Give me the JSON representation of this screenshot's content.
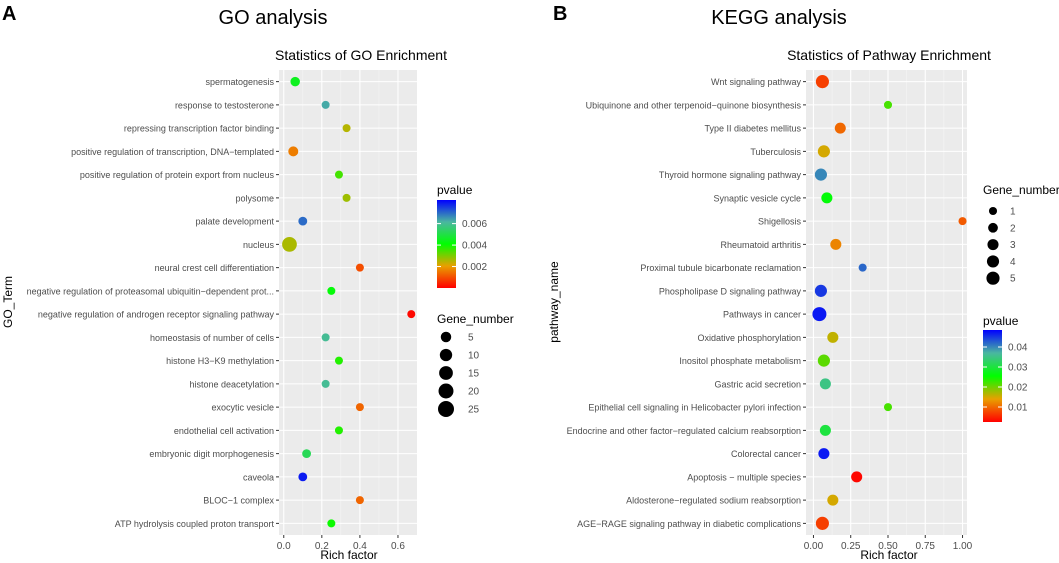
{
  "panels": [
    {
      "letter": "A",
      "heading": "GO analysis",
      "chart_data": {
        "type": "scatter",
        "title": "Statistics of GO Enrichment",
        "xlabel": "Rich factor",
        "ylabel": "GO_Term",
        "xlim": [
          -0.025,
          0.7
        ],
        "xticks": [
          "0.0",
          "0.2",
          "0.4",
          "0.6"
        ],
        "xtick_values": [
          0.0,
          0.2,
          0.4,
          0.6
        ],
        "categories": [
          "spermatogenesis",
          "response to testosterone",
          "repressing transcription factor binding",
          "positive regulation of transcription, DNA−templated",
          "positive regulation of protein export from nucleus",
          "polysome",
          "palate development",
          "nucleus",
          "neural crest cell differentiation",
          "negative regulation of proteasomal ubiquitin−dependent prot...",
          "negative regulation of androgen receptor signaling pathway",
          "homeostasis of number of cells",
          "histone H3−K9 methylation",
          "histone deacetylation",
          "exocytic vesicle",
          "endothelial cell activation",
          "embryonic digit morphogenesis",
          "caveola",
          "BLOC−1 complex",
          "ATP hydrolysis coupled proton transport"
        ],
        "rich_factor": [
          0.06,
          0.22,
          0.33,
          0.05,
          0.29,
          0.33,
          0.1,
          0.03,
          0.4,
          0.25,
          0.67,
          0.22,
          0.29,
          0.22,
          0.4,
          0.29,
          0.12,
          0.1,
          0.4,
          0.25
        ],
        "pvalue": [
          0.0045,
          0.0063,
          0.0025,
          0.0016,
          0.0035,
          0.0027,
          0.007,
          0.0026,
          0.001,
          0.0042,
          0.0001,
          0.006,
          0.0038,
          0.006,
          0.0013,
          0.0038,
          0.0052,
          0.0079,
          0.0013,
          0.004
        ],
        "gene_number": [
          3,
          1,
          1,
          4,
          1,
          1,
          2,
          19,
          1,
          1,
          1,
          1,
          1,
          1,
          1,
          1,
          2,
          2,
          1,
          1
        ],
        "color_legend": {
          "title": "pvalue",
          "range": [
            0.0,
            0.0082
          ],
          "ticks": [
            "0.006",
            "0.004",
            "0.002"
          ],
          "tick_values": [
            0.006,
            0.004,
            0.002
          ]
        },
        "size_legend": {
          "title": "Gene_number",
          "labels": [
            "5",
            "10",
            "15",
            "20",
            "25"
          ],
          "values": [
            5,
            10,
            15,
            20,
            25
          ],
          "max": 25
        }
      }
    },
    {
      "letter": "B",
      "heading": "KEGG analysis",
      "chart_data": {
        "type": "scatter",
        "title": "Statistics of Pathway Enrichment",
        "xlabel": "Rich factor",
        "ylabel": "pathway_name",
        "xlim": [
          -0.05,
          1.03
        ],
        "xticks": [
          "0.00",
          "0.25",
          "0.50",
          "0.75",
          "1.00"
        ],
        "xtick_values": [
          0.0,
          0.25,
          0.5,
          0.75,
          1.0
        ],
        "categories": [
          "Wnt signaling pathway",
          "Ubiquinone and other terpenoid−quinone biosynthesis",
          "Type II diabetes mellitus",
          "Tuberculosis",
          "Thyroid hormone signaling pathway",
          "Synaptic vesicle cycle",
          "Shigellosis",
          "Rheumatoid arthritis",
          "Proximal tubule bicarbonate reclamation",
          "Phospholipase D signaling pathway",
          "Pathways in cancer",
          "Oxidative phosphorylation",
          "Inositol phosphate metabolism",
          "Gastric acid secretion",
          "Epithelial cell signaling in Helicobacter pylori infection",
          "Endocrine and other factor−regulated calcium reabsorption",
          "Colorectal cancer",
          "Apoptosis − multiple species",
          "Aldosterone−regulated sodium reabsorption",
          "AGE−RAGE signaling pathway in diabetic complications"
        ],
        "rich_factor": [
          0.06,
          0.5,
          0.18,
          0.07,
          0.05,
          0.09,
          1.0,
          0.15,
          0.33,
          0.05,
          0.04,
          0.13,
          0.07,
          0.08,
          0.5,
          0.08,
          0.07,
          0.29,
          0.13,
          0.06
        ],
        "pvalue": [
          0.007,
          0.022,
          0.01,
          0.015,
          0.04,
          0.026,
          0.009,
          0.012,
          0.042,
          0.045,
          0.047,
          0.016,
          0.021,
          0.035,
          0.022,
          0.03,
          0.047,
          0.003,
          0.015,
          0.007
        ],
        "gene_number": [
          5,
          1,
          3,
          4,
          4,
          3,
          1,
          3,
          1,
          4,
          6,
          3,
          4,
          3,
          1,
          3,
          3,
          3,
          3,
          5
        ],
        "color_legend": {
          "title": "pvalue",
          "range": [
            0.0025,
            0.0485
          ],
          "ticks": [
            "0.04",
            "0.03",
            "0.02",
            "0.01"
          ],
          "tick_values": [
            0.04,
            0.03,
            0.02,
            0.01
          ]
        },
        "size_legend": {
          "title": "Gene_number",
          "labels": [
            "1",
            "2",
            "3",
            "4",
            "5"
          ],
          "values": [
            1,
            2,
            3,
            4,
            5
          ],
          "max": 6
        }
      }
    }
  ]
}
